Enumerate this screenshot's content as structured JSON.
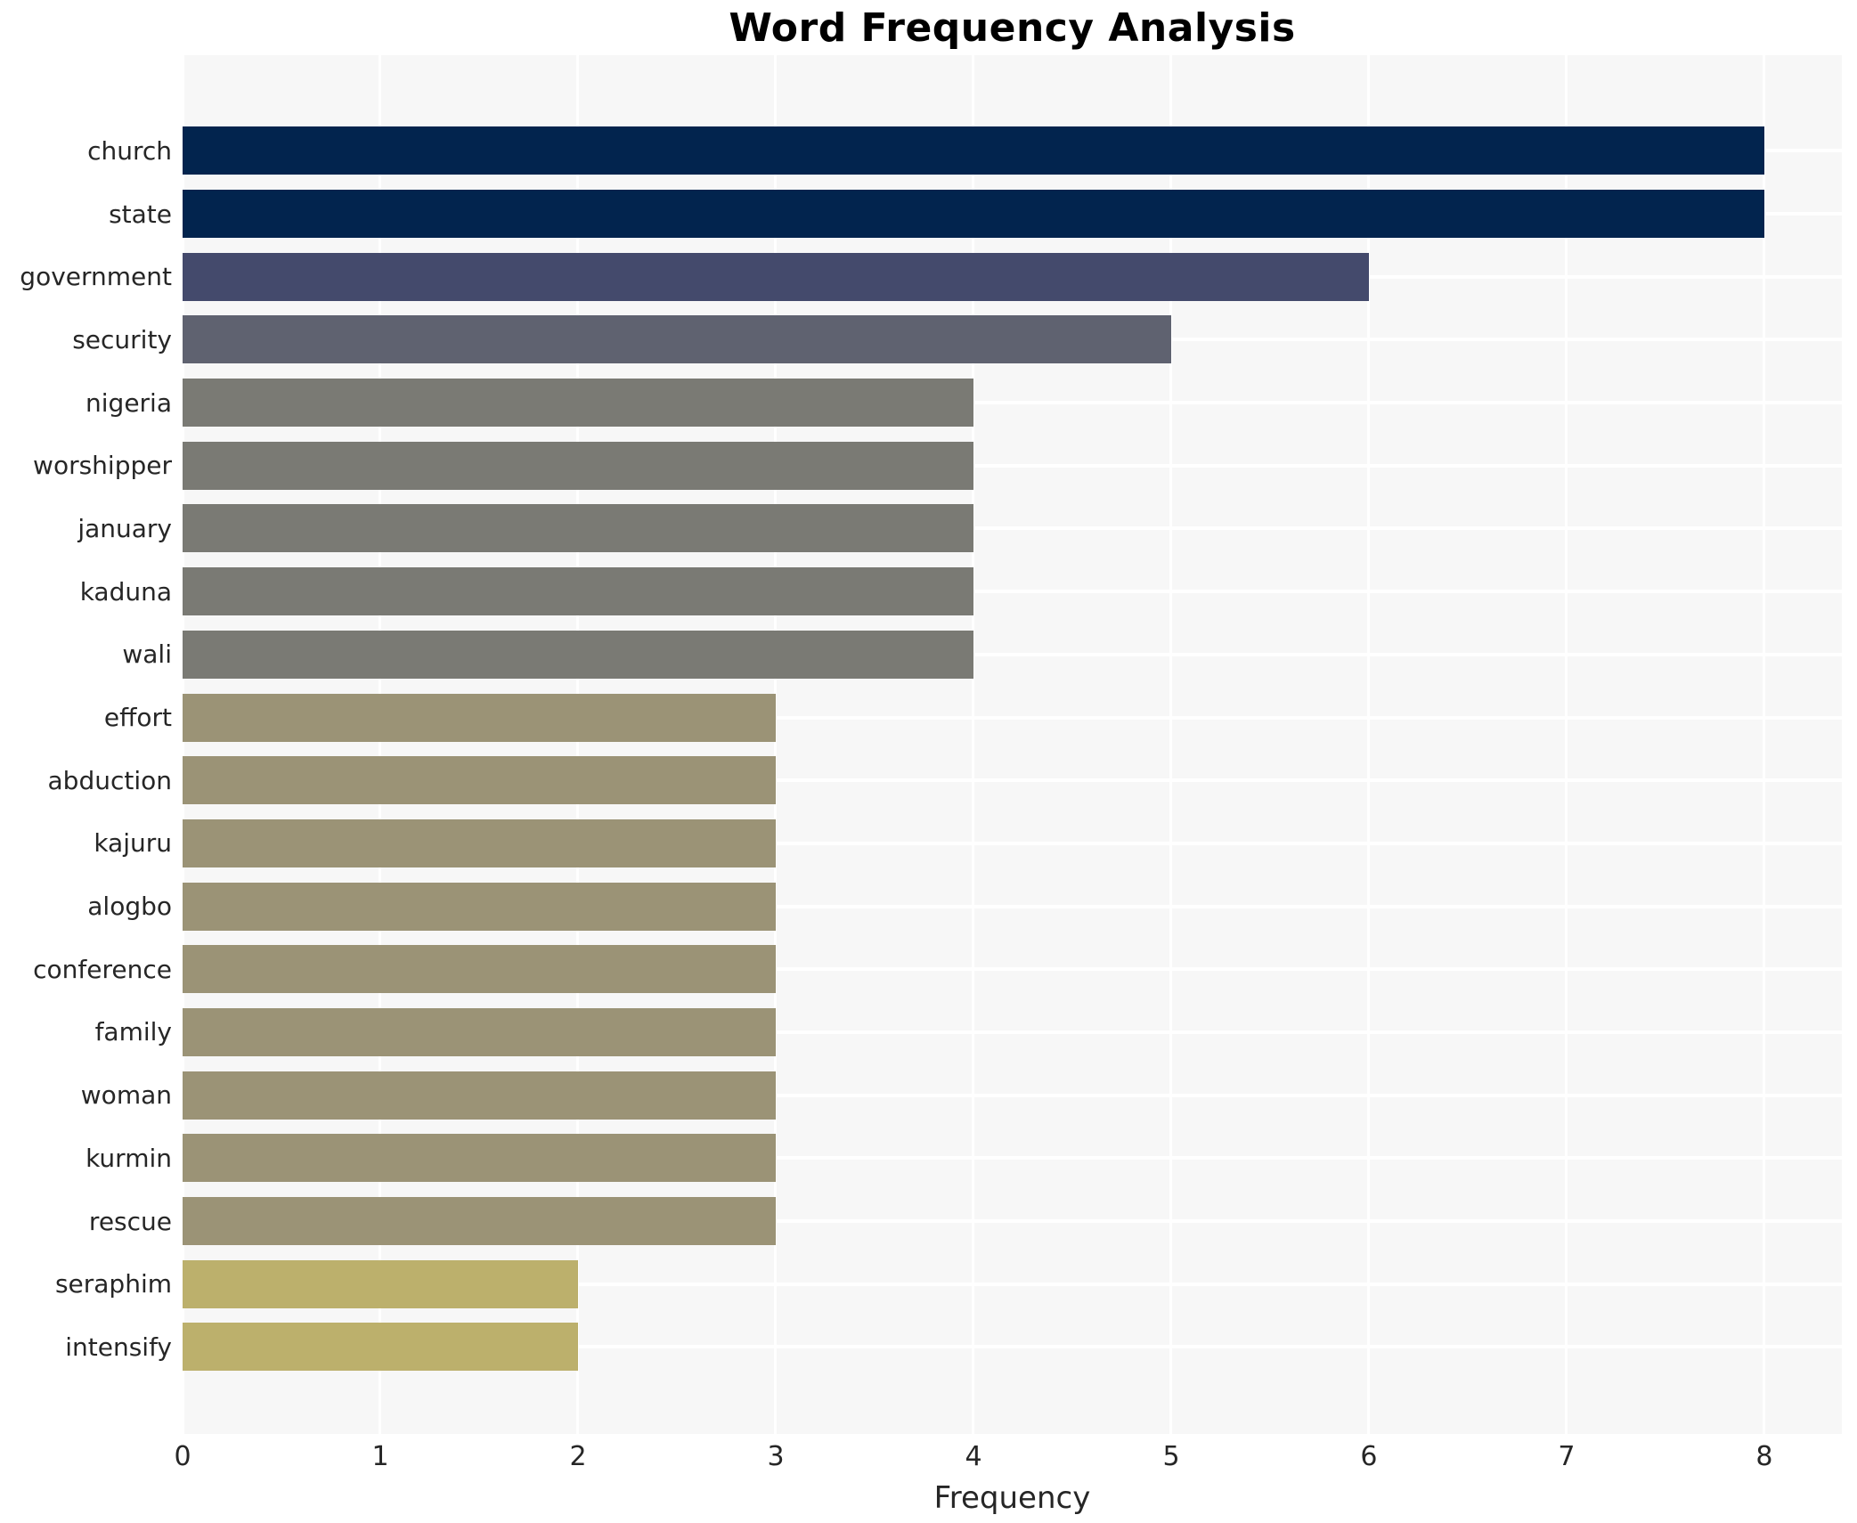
{
  "title": "Word Frequency Analysis",
  "colors": {
    "panel_bg": "#f7f7f7",
    "grid": "#ffffff",
    "tick_text": "#262626",
    "title_text": "#000000"
  },
  "chart_data": {
    "type": "bar",
    "orientation": "horizontal",
    "title": "Word Frequency Analysis",
    "xlabel": "Frequency",
    "ylabel": "",
    "xlim": [
      0,
      8.392
    ],
    "xticks": [
      0,
      1,
      2,
      3,
      4,
      5,
      6,
      7,
      8
    ],
    "grid": true,
    "legend": false,
    "categories": [
      "church",
      "state",
      "government",
      "security",
      "nigeria",
      "worshipper",
      "january",
      "kaduna",
      "wali",
      "effort",
      "abduction",
      "kajuru",
      "alogbo",
      "conference",
      "family",
      "woman",
      "kurmin",
      "rescue",
      "seraphim",
      "intensify"
    ],
    "values": [
      8,
      8,
      6,
      5,
      4,
      4,
      4,
      4,
      4,
      3,
      3,
      3,
      3,
      3,
      3,
      3,
      3,
      3,
      2,
      2
    ],
    "bar_colors": [
      "#02244e",
      "#02244e",
      "#444a6c",
      "#5f6270",
      "#7a7a74",
      "#7a7a74",
      "#7a7a74",
      "#7a7a74",
      "#7a7a74",
      "#9b9376",
      "#9b9376",
      "#9b9376",
      "#9b9376",
      "#9b9376",
      "#9b9376",
      "#9b9376",
      "#9b9376",
      "#9b9376",
      "#bcb06c",
      "#bcb06c"
    ]
  }
}
